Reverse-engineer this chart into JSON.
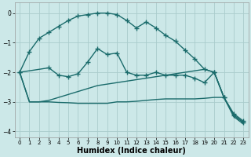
{
  "xlabel": "Humidex (Indice chaleur)",
  "bg_color": "#cce8e8",
  "grid_color": "#aacccc",
  "line_color": "#1a6b6b",
  "xlim": [
    -0.5,
    23.5
  ],
  "ylim": [
    -4.2,
    0.35
  ],
  "yticks": [
    0,
    -1,
    -2,
    -3,
    -4
  ],
  "xticks": [
    0,
    1,
    2,
    3,
    4,
    5,
    6,
    7,
    8,
    9,
    10,
    11,
    12,
    13,
    14,
    15,
    16,
    17,
    18,
    19,
    20,
    21,
    22,
    23
  ],
  "series": [
    {
      "x": [
        0,
        1,
        2,
        3,
        4,
        5,
        6,
        7,
        8,
        9,
        10,
        11,
        12,
        13,
        14,
        15,
        16,
        17,
        18,
        19,
        20,
        21,
        22,
        23
      ],
      "y": [
        -2.0,
        -1.3,
        -0.85,
        -0.65,
        -0.45,
        -0.25,
        -0.1,
        -0.05,
        0.0,
        0.0,
        -0.05,
        -0.25,
        -0.5,
        -0.3,
        -0.5,
        -0.75,
        -0.95,
        -1.25,
        -1.55,
        -1.9,
        -2.0,
        -2.85,
        -3.4,
        -3.65
      ],
      "has_markers": true
    },
    {
      "x": [
        0,
        3,
        4,
        5,
        6,
        7,
        8,
        9,
        10,
        11,
        12,
        13,
        14,
        15,
        16,
        17,
        18,
        19,
        20,
        21,
        22,
        23
      ],
      "y": [
        -2.0,
        -1.85,
        -2.1,
        -2.15,
        -2.05,
        -1.65,
        -1.2,
        -1.4,
        -1.35,
        -2.0,
        -2.1,
        -2.1,
        -2.0,
        -2.1,
        -2.1,
        -2.1,
        -2.2,
        -2.35,
        -2.0,
        -2.85,
        -3.45,
        -3.7
      ],
      "has_markers": true
    },
    {
      "x": [
        0,
        1,
        2,
        3,
        4,
        5,
        6,
        7,
        8,
        9,
        10,
        11,
        12,
        13,
        14,
        15,
        16,
        17,
        18,
        19,
        20,
        21,
        22,
        23
      ],
      "y": [
        -2.0,
        -3.0,
        -3.0,
        -2.95,
        -2.85,
        -2.75,
        -2.65,
        -2.55,
        -2.45,
        -2.4,
        -2.35,
        -2.3,
        -2.25,
        -2.2,
        -2.15,
        -2.1,
        -2.05,
        -2.0,
        -1.95,
        -1.9,
        -2.0,
        -2.85,
        -3.45,
        -3.7
      ],
      "has_markers": false
    },
    {
      "x": [
        0,
        1,
        2,
        3,
        4,
        5,
        6,
        7,
        8,
        9,
        10,
        11,
        12,
        13,
        14,
        15,
        16,
        17,
        18,
        19,
        20,
        21,
        22,
        23
      ],
      "y": [
        -2.0,
        -3.0,
        -3.0,
        -3.0,
        -3.02,
        -3.03,
        -3.05,
        -3.05,
        -3.05,
        -3.05,
        -3.0,
        -3.0,
        -2.98,
        -2.95,
        -2.92,
        -2.9,
        -2.9,
        -2.9,
        -2.9,
        -2.88,
        -2.85,
        -2.85,
        -3.5,
        -3.75
      ],
      "has_markers": false
    }
  ]
}
